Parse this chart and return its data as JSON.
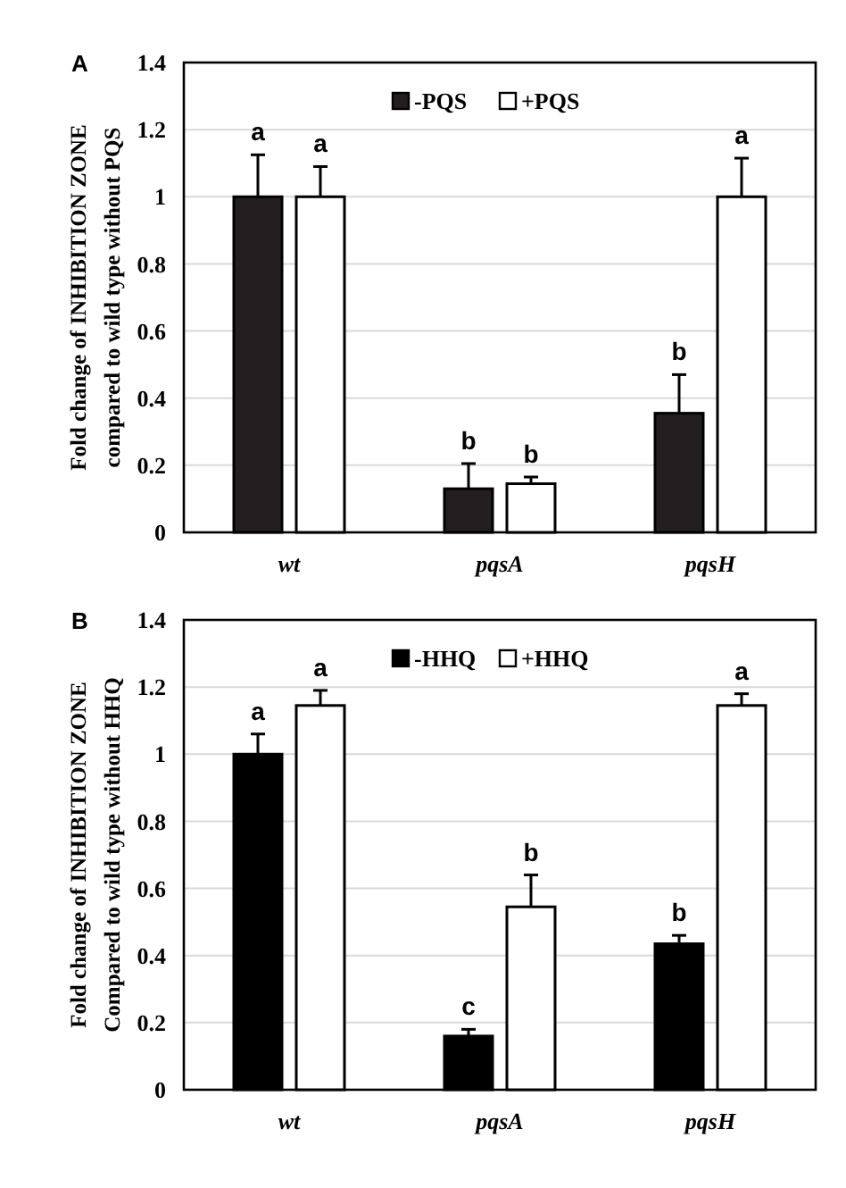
{
  "chart_data": [
    {
      "type": "bar",
      "title": "A",
      "ylabel": "Fold change of INHIBITION ZONE\ncompared to wild type without PQS",
      "categories": [
        "wt",
        "pqsA",
        "pqsH"
      ],
      "series": [
        {
          "name": "-PQS",
          "color": "#231f20",
          "values": [
            1.0,
            0.13,
            0.355
          ],
          "errors": [
            0.125,
            0.075,
            0.115
          ]
        },
        {
          "name": "+PQS",
          "color": "#ffffff",
          "values": [
            1.0,
            0.145,
            1.0
          ],
          "errors": [
            0.09,
            0.02,
            0.115
          ]
        }
      ],
      "ylim": [
        0,
        1.4
      ],
      "yticks": [
        0,
        0.2,
        0.4,
        0.6,
        0.8,
        1,
        1.2,
        1.4
      ],
      "grid": "y",
      "legend": "top",
      "annotations": [
        "a",
        "a",
        "b",
        "b",
        "b",
        "a"
      ]
    },
    {
      "type": "bar",
      "title": "B",
      "ylabel": "Fold change of INHIBITION ZONE\nCompared to wild type without HHQ",
      "categories": [
        "wt",
        "pqsA",
        "pqsH"
      ],
      "series": [
        {
          "name": "-HHQ",
          "color": "#000000",
          "values": [
            1.0,
            0.16,
            0.435
          ],
          "errors": [
            0.06,
            0.02,
            0.025
          ]
        },
        {
          "name": "+HHQ",
          "color": "#ffffff",
          "values": [
            1.145,
            0.545,
            1.145
          ],
          "errors": [
            0.045,
            0.095,
            0.035
          ]
        }
      ],
      "ylim": [
        0,
        1.4
      ],
      "yticks": [
        0,
        0.2,
        0.4,
        0.6,
        0.8,
        1,
        1.2,
        1.4
      ],
      "grid": "y",
      "legend": "top",
      "annotations": [
        "a",
        "a",
        "c",
        "b",
        "b",
        "a"
      ]
    }
  ]
}
